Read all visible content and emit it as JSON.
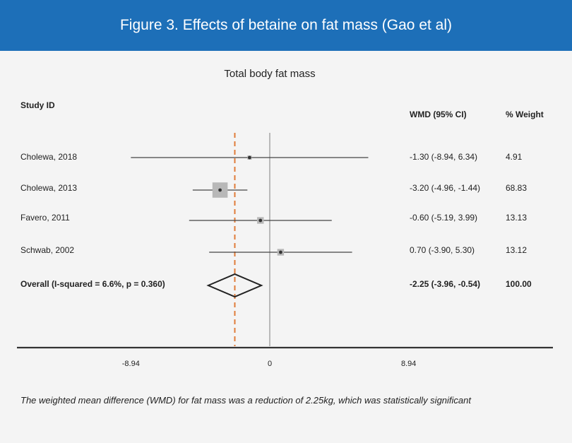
{
  "banner": {
    "title": "Figure 3. Effects of betaine on fat mass (Gao et al)"
  },
  "caption": "The weighted mean difference (WMD) for fat mass was a reduction of 2.25kg, which was statistically significant",
  "chart_data": {
    "type": "forest",
    "title": "Total body fat mass",
    "columns": {
      "study": "Study ID",
      "effect": "WMD (95% CI)",
      "weight": "% Weight"
    },
    "studies": [
      {
        "label": "Cholewa, 2018",
        "wmd": -1.3,
        "lower": -8.94,
        "upper": 6.34,
        "effect_text": "-1.30 (-8.94, 6.34)",
        "weight": 4.91,
        "weight_text": "4.91"
      },
      {
        "label": "Cholewa, 2013",
        "wmd": -3.2,
        "lower": -4.96,
        "upper": -1.44,
        "effect_text": "-3.20 (-4.96, -1.44)",
        "weight": 68.83,
        "weight_text": "68.83"
      },
      {
        "label": "Favero, 2011",
        "wmd": -0.6,
        "lower": -5.19,
        "upper": 3.99,
        "effect_text": "-0.60 (-5.19, 3.99)",
        "weight": 13.13,
        "weight_text": "13.13"
      },
      {
        "label": "Schwab, 2002",
        "wmd": 0.7,
        "lower": -3.9,
        "upper": 5.3,
        "effect_text": "0.70 (-3.90, 5.30)",
        "weight": 13.12,
        "weight_text": "13.12"
      }
    ],
    "overall": {
      "label": "Overall (I-squared = 6.6%, p = 0.360)",
      "wmd": -2.25,
      "lower": -3.96,
      "upper": -0.54,
      "effect_text": "-2.25 (-3.96, -0.54)",
      "weight_text": "100.00"
    },
    "x_ticks": [
      {
        "value": -8.94,
        "label": "-8.94"
      },
      {
        "value": 0,
        "label": "0"
      },
      {
        "value": 8.94,
        "label": "8.94"
      }
    ],
    "xlim": [
      -8.94,
      8.94
    ],
    "colors": {
      "overall_line": "#e07b39",
      "null_line": "#999999",
      "marker": "#b8b8b8",
      "ci_line": "#444444"
    }
  }
}
